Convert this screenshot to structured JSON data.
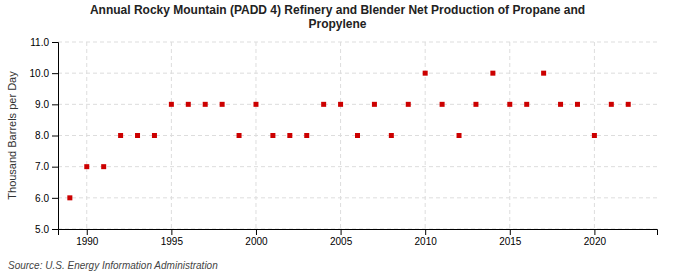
{
  "chart_data": {
    "type": "scatter",
    "title": "Annual Rocky Mountain (PADD 4) Refinery and Blender Net Production of Propane and\nPropylene",
    "ylabel": "Thousand Barrels per Day",
    "annotations": [
      "Source: U.S. Energy Information Administration"
    ],
    "x": [
      1989,
      1990,
      1991,
      1992,
      1993,
      1994,
      1995,
      1996,
      1997,
      1998,
      1999,
      2000,
      2001,
      2002,
      2003,
      2004,
      2005,
      2006,
      2007,
      2008,
      2009,
      2010,
      2011,
      2012,
      2013,
      2014,
      2015,
      2016,
      2017,
      2018,
      2019,
      2020,
      2021,
      2022
    ],
    "values": [
      6.0,
      7.0,
      7.0,
      8.0,
      8.0,
      8.0,
      9.0,
      9.0,
      9.0,
      9.0,
      8.0,
      9.0,
      8.0,
      8.0,
      8.0,
      9.0,
      9.0,
      8.0,
      9.0,
      8.0,
      9.0,
      10.0,
      9.0,
      8.0,
      9.0,
      10.0,
      9.0,
      9.0,
      10.0,
      9.0,
      9.0,
      8.0,
      9.0,
      9.0
    ],
    "color": "#cc0000",
    "marker": "square",
    "xlim": [
      1988.3,
      2023.7
    ],
    "xticks": [
      1990,
      1995,
      2000,
      2005,
      2010,
      2015,
      2020
    ],
    "ylim": [
      5.0,
      11.0
    ],
    "yticks": [
      {
        "value": 5.0,
        "label": "5.0"
      },
      {
        "value": 6.0,
        "label": "6.0"
      },
      {
        "value": 7.0,
        "label": "7.0"
      },
      {
        "value": 8.0,
        "label": "8.0"
      },
      {
        "value": 9.0,
        "label": "9.0"
      },
      {
        "value": 10.0,
        "label": "10.0"
      },
      {
        "value": 11.0,
        "label": "11.0"
      }
    ],
    "grid": true
  }
}
